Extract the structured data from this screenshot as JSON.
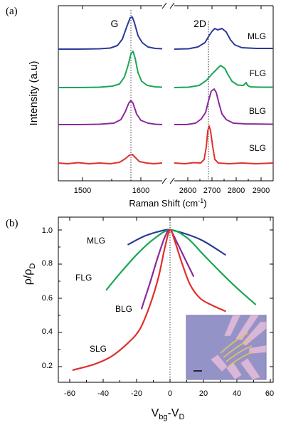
{
  "panel_a": {
    "label": "(a)",
    "ylabel": "Intensity (a.u)",
    "xlabel_main": "Raman Shift (cm",
    "xlabel_sup": "-1",
    "xlabel_end": ")",
    "peak_labels": [
      "G",
      "2D"
    ],
    "sample_labels": [
      "MLG",
      "FLG",
      "BLG",
      "SLG"
    ],
    "ticks_left": [
      "1500",
      "1600"
    ],
    "ticks_right": [
      "2600",
      "2700",
      "2800",
      "2900"
    ]
  },
  "panel_b": {
    "label": "(b)",
    "ylabel_rho": "ρ/ρ",
    "ylabel_sub": "D",
    "xlabel_v": "V",
    "xlabel_bg": "bg",
    "xlabel_mid": "-V",
    "xlabel_d": "D",
    "series_labels": [
      "MLG",
      "FLG",
      "BLG",
      "SLG"
    ],
    "yticks": [
      "1.0",
      "0.8",
      "0.6",
      "0.4",
      "0.2"
    ],
    "xticks": [
      "-60",
      "-40",
      "-20",
      "0",
      "20",
      "40",
      "60"
    ],
    "inset_desc": "device-photo"
  },
  "chart_data": [
    {
      "type": "line",
      "title": "",
      "xlabel": "Raman Shift (cm-1)",
      "ylabel": "Intensity (a.u)",
      "x_axis_break": [
        1650,
        2550
      ],
      "xlim_left": [
        1440,
        1650
      ],
      "xlim_right": [
        2550,
        2950
      ],
      "peaks": {
        "G": 1580,
        "2D": {
          "SLG": 2685,
          "BLG": 2700,
          "FLG": 2720,
          "MLG": 2715
        }
      },
      "series": [
        {
          "name": "MLG",
          "color": "#2b3a9a"
        },
        {
          "name": "FLG",
          "color": "#1aa655"
        },
        {
          "name": "BLG",
          "color": "#8a2a9a"
        },
        {
          "name": "SLG",
          "color": "#e0302c"
        }
      ]
    },
    {
      "type": "line",
      "title": "",
      "xlabel": "Vbg-VD",
      "ylabel": "ρ/ρD",
      "xlim": [
        -70,
        70
      ],
      "ylim": [
        0.15,
        1.07
      ],
      "series": [
        {
          "name": "MLG",
          "color": "#2b3a9a",
          "x": [
            -25,
            -15,
            -5,
            0,
            10,
            20,
            33
          ],
          "y": [
            0.915,
            0.965,
            0.995,
            1.0,
            0.975,
            0.935,
            0.855
          ]
        },
        {
          "name": "FLG",
          "color": "#1aa655",
          "x": [
            -38,
            -30,
            -20,
            -10,
            0,
            10,
            20,
            30,
            40,
            51
          ],
          "y": [
            0.65,
            0.745,
            0.855,
            0.945,
            1.0,
            0.955,
            0.855,
            0.755,
            0.66,
            0.565
          ]
        },
        {
          "name": "BLG",
          "color": "#8a2a9a",
          "x": [
            -17,
            -12,
            -7,
            -3,
            0,
            4,
            9,
            14
          ],
          "y": [
            0.54,
            0.69,
            0.85,
            0.96,
            1.0,
            0.93,
            0.83,
            0.73
          ]
        },
        {
          "name": "SLG",
          "color": "#e0302c",
          "x": [
            -58,
            -45,
            -35,
            -25,
            -18,
            -12,
            -7,
            -3,
            0,
            3,
            7,
            12,
            18,
            25,
            33
          ],
          "y": [
            0.18,
            0.215,
            0.26,
            0.34,
            0.42,
            0.56,
            0.72,
            0.9,
            1.0,
            0.93,
            0.81,
            0.68,
            0.6,
            0.56,
            0.525
          ]
        }
      ]
    }
  ]
}
